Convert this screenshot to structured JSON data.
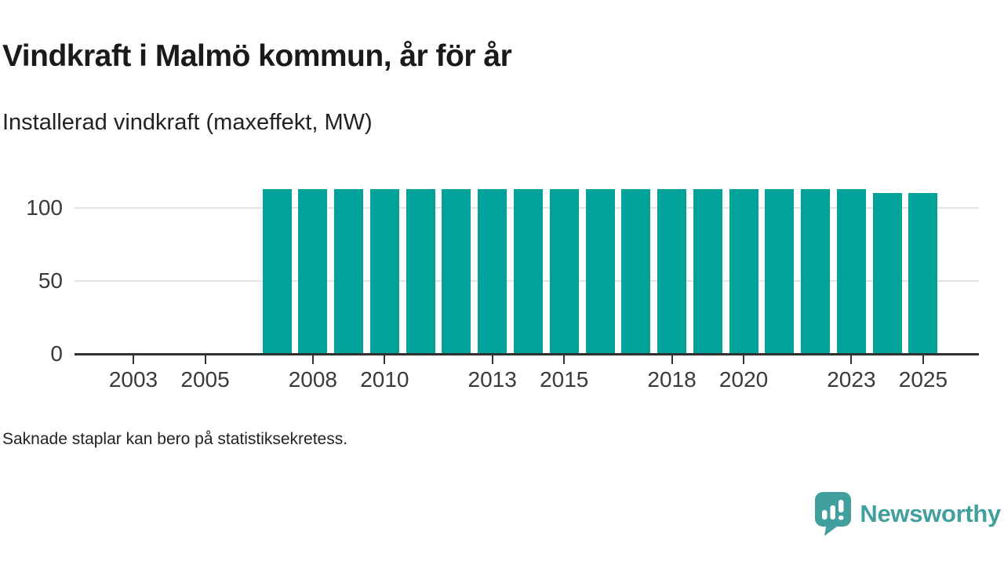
{
  "header": {
    "title": "Vindkraft i Malmö kommun, år för år",
    "subtitle": "Installerad vindkraft (maxeffekt, MW)"
  },
  "footnote": "Saknade staplar kan bero på statistiksekretess.",
  "branding": {
    "name": "Newsworthy",
    "icon": "newsworthy-bubble-barchart-icon",
    "color": "#41a09d"
  },
  "colors": {
    "bar": "#00a29a",
    "grid": "#e3e3e3",
    "axis": "#303030",
    "tick": "#333333",
    "text": "#1a1a1a"
  },
  "chart_data": {
    "type": "bar",
    "title": "Vindkraft i Malmö kommun, år för år",
    "subtitle": "Installerad vindkraft (maxeffekt, MW)",
    "unit": "MW",
    "xlabel": "",
    "ylabel": "Installerad vindkraft (maxeffekt, MW)",
    "x_axis": {
      "range": [
        2002,
        2026
      ],
      "tick_labels": [
        "2003",
        "2005",
        "2008",
        "2010",
        "2013",
        "2015",
        "2018",
        "2020",
        "2023",
        "2025"
      ]
    },
    "y_axis": {
      "tick_labels": [
        "0",
        "50",
        "100"
      ],
      "tick_values": [
        0,
        50,
        100
      ],
      "gridlines": [
        50,
        100
      ],
      "ylim": [
        0,
        120
      ],
      "grid": true
    },
    "legend": null,
    "bars": [
      {
        "year": 2007,
        "value": 113
      },
      {
        "year": 2008,
        "value": 113
      },
      {
        "year": 2009,
        "value": 113
      },
      {
        "year": 2010,
        "value": 113
      },
      {
        "year": 2011,
        "value": 113
      },
      {
        "year": 2012,
        "value": 113
      },
      {
        "year": 2013,
        "value": 113
      },
      {
        "year": 2014,
        "value": 113
      },
      {
        "year": 2015,
        "value": 113
      },
      {
        "year": 2016,
        "value": 113
      },
      {
        "year": 2017,
        "value": 113
      },
      {
        "year": 2018,
        "value": 113
      },
      {
        "year": 2019,
        "value": 113
      },
      {
        "year": 2020,
        "value": 113
      },
      {
        "year": 2021,
        "value": 113
      },
      {
        "year": 2022,
        "value": 113
      },
      {
        "year": 2023,
        "value": 113
      },
      {
        "year": 2024,
        "value": 110
      },
      {
        "year": 2025,
        "value": 110
      }
    ],
    "missing_years_note": "Saknade staplar kan bero på statistiksekretess."
  }
}
